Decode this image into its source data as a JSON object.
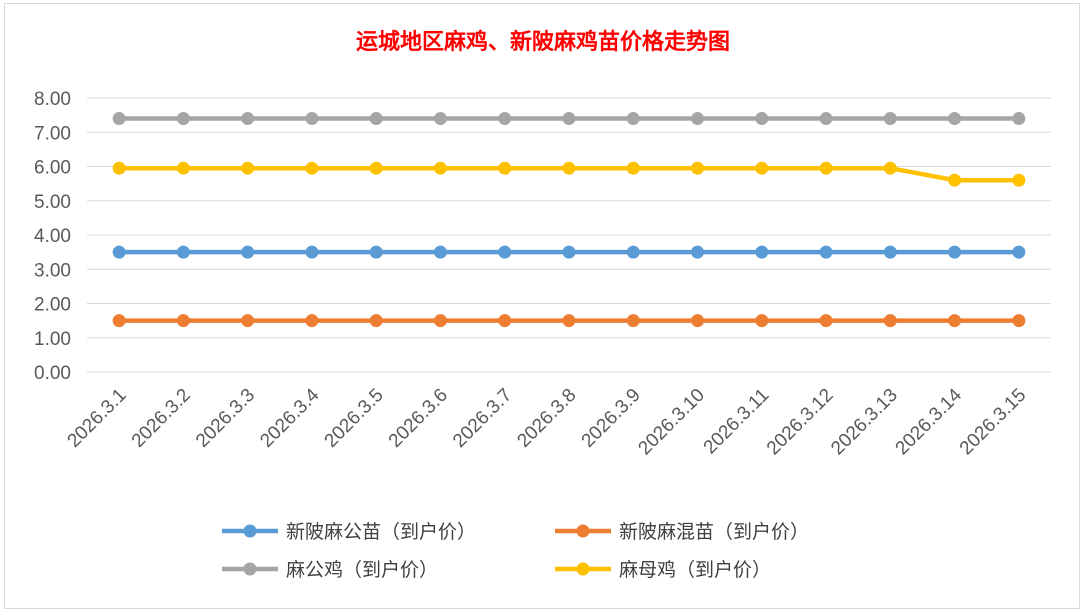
{
  "chart_data": {
    "type": "line",
    "title": "运城地区麻鸡、新陂麻鸡苗价格走势图",
    "categories": [
      "2026.3.1",
      "2026.3.2",
      "2026.3.3",
      "2026.3.4",
      "2026.3.5",
      "2026.3.6",
      "2026.3.7",
      "2026.3.8",
      "2026.3.9",
      "2026.3.10",
      "2026.3.11",
      "2026.3.12",
      "2026.3.13",
      "2026.3.14",
      "2026.3.15"
    ],
    "y_ticks": [
      "0.00",
      "1.00",
      "2.00",
      "3.00",
      "4.00",
      "5.00",
      "6.00",
      "7.00",
      "8.00"
    ],
    "ylim": [
      0,
      8
    ],
    "grid": true,
    "legend_position": "bottom",
    "series": [
      {
        "name": "新陂麻公苗（到户价）",
        "color": "#5b9bd5",
        "values": [
          3.5,
          3.5,
          3.5,
          3.5,
          3.5,
          3.5,
          3.5,
          3.5,
          3.5,
          3.5,
          3.5,
          3.5,
          3.5,
          3.5,
          3.5
        ]
      },
      {
        "name": "新陂麻混苗（到户价）",
        "color": "#ed7d31",
        "values": [
          1.5,
          1.5,
          1.5,
          1.5,
          1.5,
          1.5,
          1.5,
          1.5,
          1.5,
          1.5,
          1.5,
          1.5,
          1.5,
          1.5,
          1.5
        ]
      },
      {
        "name": "麻公鸡（到户价）",
        "color": "#a5a5a5",
        "values": [
          7.4,
          7.4,
          7.4,
          7.4,
          7.4,
          7.4,
          7.4,
          7.4,
          7.4,
          7.4,
          7.4,
          7.4,
          7.4,
          7.4,
          7.4
        ]
      },
      {
        "name": "麻母鸡（到户价）",
        "color": "#ffc000",
        "values": [
          5.95,
          5.95,
          5.95,
          5.95,
          5.95,
          5.95,
          5.95,
          5.95,
          5.95,
          5.95,
          5.95,
          5.95,
          5.95,
          5.6,
          5.6
        ]
      }
    ]
  }
}
